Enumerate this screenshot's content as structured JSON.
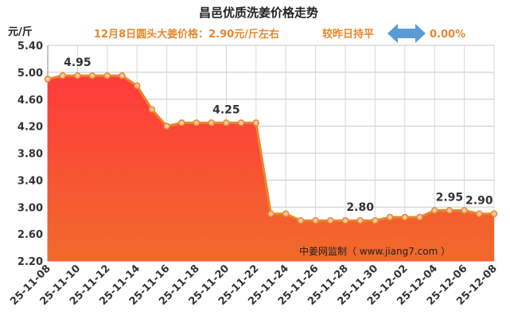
{
  "chart_data": {
    "type": "area",
    "title": "昌邑优质洗姜价格走势",
    "subtitle": {
      "price_text": "12月8日圆头大姜价格：2.90元/斤左右",
      "compare_text": "较昨日持平",
      "change_text": "0.00%"
    },
    "ylabel": "元/斤",
    "ylim": [
      2.2,
      5.4
    ],
    "yticks": [
      "5.40",
      "5.00",
      "4.60",
      "4.20",
      "3.80",
      "3.40",
      "3.00",
      "2.60",
      "2.20"
    ],
    "x": [
      "25-11-08",
      "25-11-09",
      "25-11-10",
      "25-11-11",
      "25-11-12",
      "25-11-13",
      "25-11-14",
      "25-11-15",
      "25-11-16",
      "25-11-17",
      "25-11-18",
      "25-11-19",
      "25-11-20",
      "25-11-21",
      "25-11-22",
      "25-11-23",
      "25-11-24",
      "25-11-25",
      "25-11-26",
      "25-11-27",
      "25-11-28",
      "25-11-29",
      "25-11-30",
      "25-12-01",
      "25-12-02",
      "25-12-03",
      "25-12-04",
      "25-12-05",
      "25-12-06",
      "25-12-07",
      "25-12-08"
    ],
    "xticks": [
      "25-11-08",
      "25-11-10",
      "25-11-12",
      "25-11-14",
      "25-11-16",
      "25-11-18",
      "25-11-20",
      "25-11-22",
      "25-11-24",
      "25-11-26",
      "25-11-28",
      "25-11-30",
      "25-12-02",
      "25-12-04",
      "25-12-06",
      "25-12-08"
    ],
    "values": [
      4.9,
      4.95,
      4.95,
      4.95,
      4.95,
      4.95,
      4.8,
      4.45,
      4.2,
      4.25,
      4.25,
      4.25,
      4.25,
      4.25,
      4.25,
      2.9,
      2.9,
      2.8,
      2.8,
      2.8,
      2.8,
      2.8,
      2.8,
      2.85,
      2.85,
      2.85,
      2.95,
      2.95,
      2.95,
      2.9,
      2.9
    ],
    "data_labels": [
      {
        "index": 2,
        "text": "4.95"
      },
      {
        "index": 12,
        "text": "4.25"
      },
      {
        "index": 21,
        "text": "2.80"
      },
      {
        "index": 27,
        "text": "2.95"
      },
      {
        "index": 29,
        "text": "2.90"
      }
    ],
    "grid": true,
    "watermark": "中姜网监制（ www.jiang7.com ）",
    "colors": {
      "line": "#E8872C",
      "marker_fill": "#F2C9A0",
      "fill_top": "#FF3B3B",
      "fill_bottom": "#F06A2A",
      "subtitle": "#E8872C",
      "arrow": "#5B9BD5"
    }
  }
}
